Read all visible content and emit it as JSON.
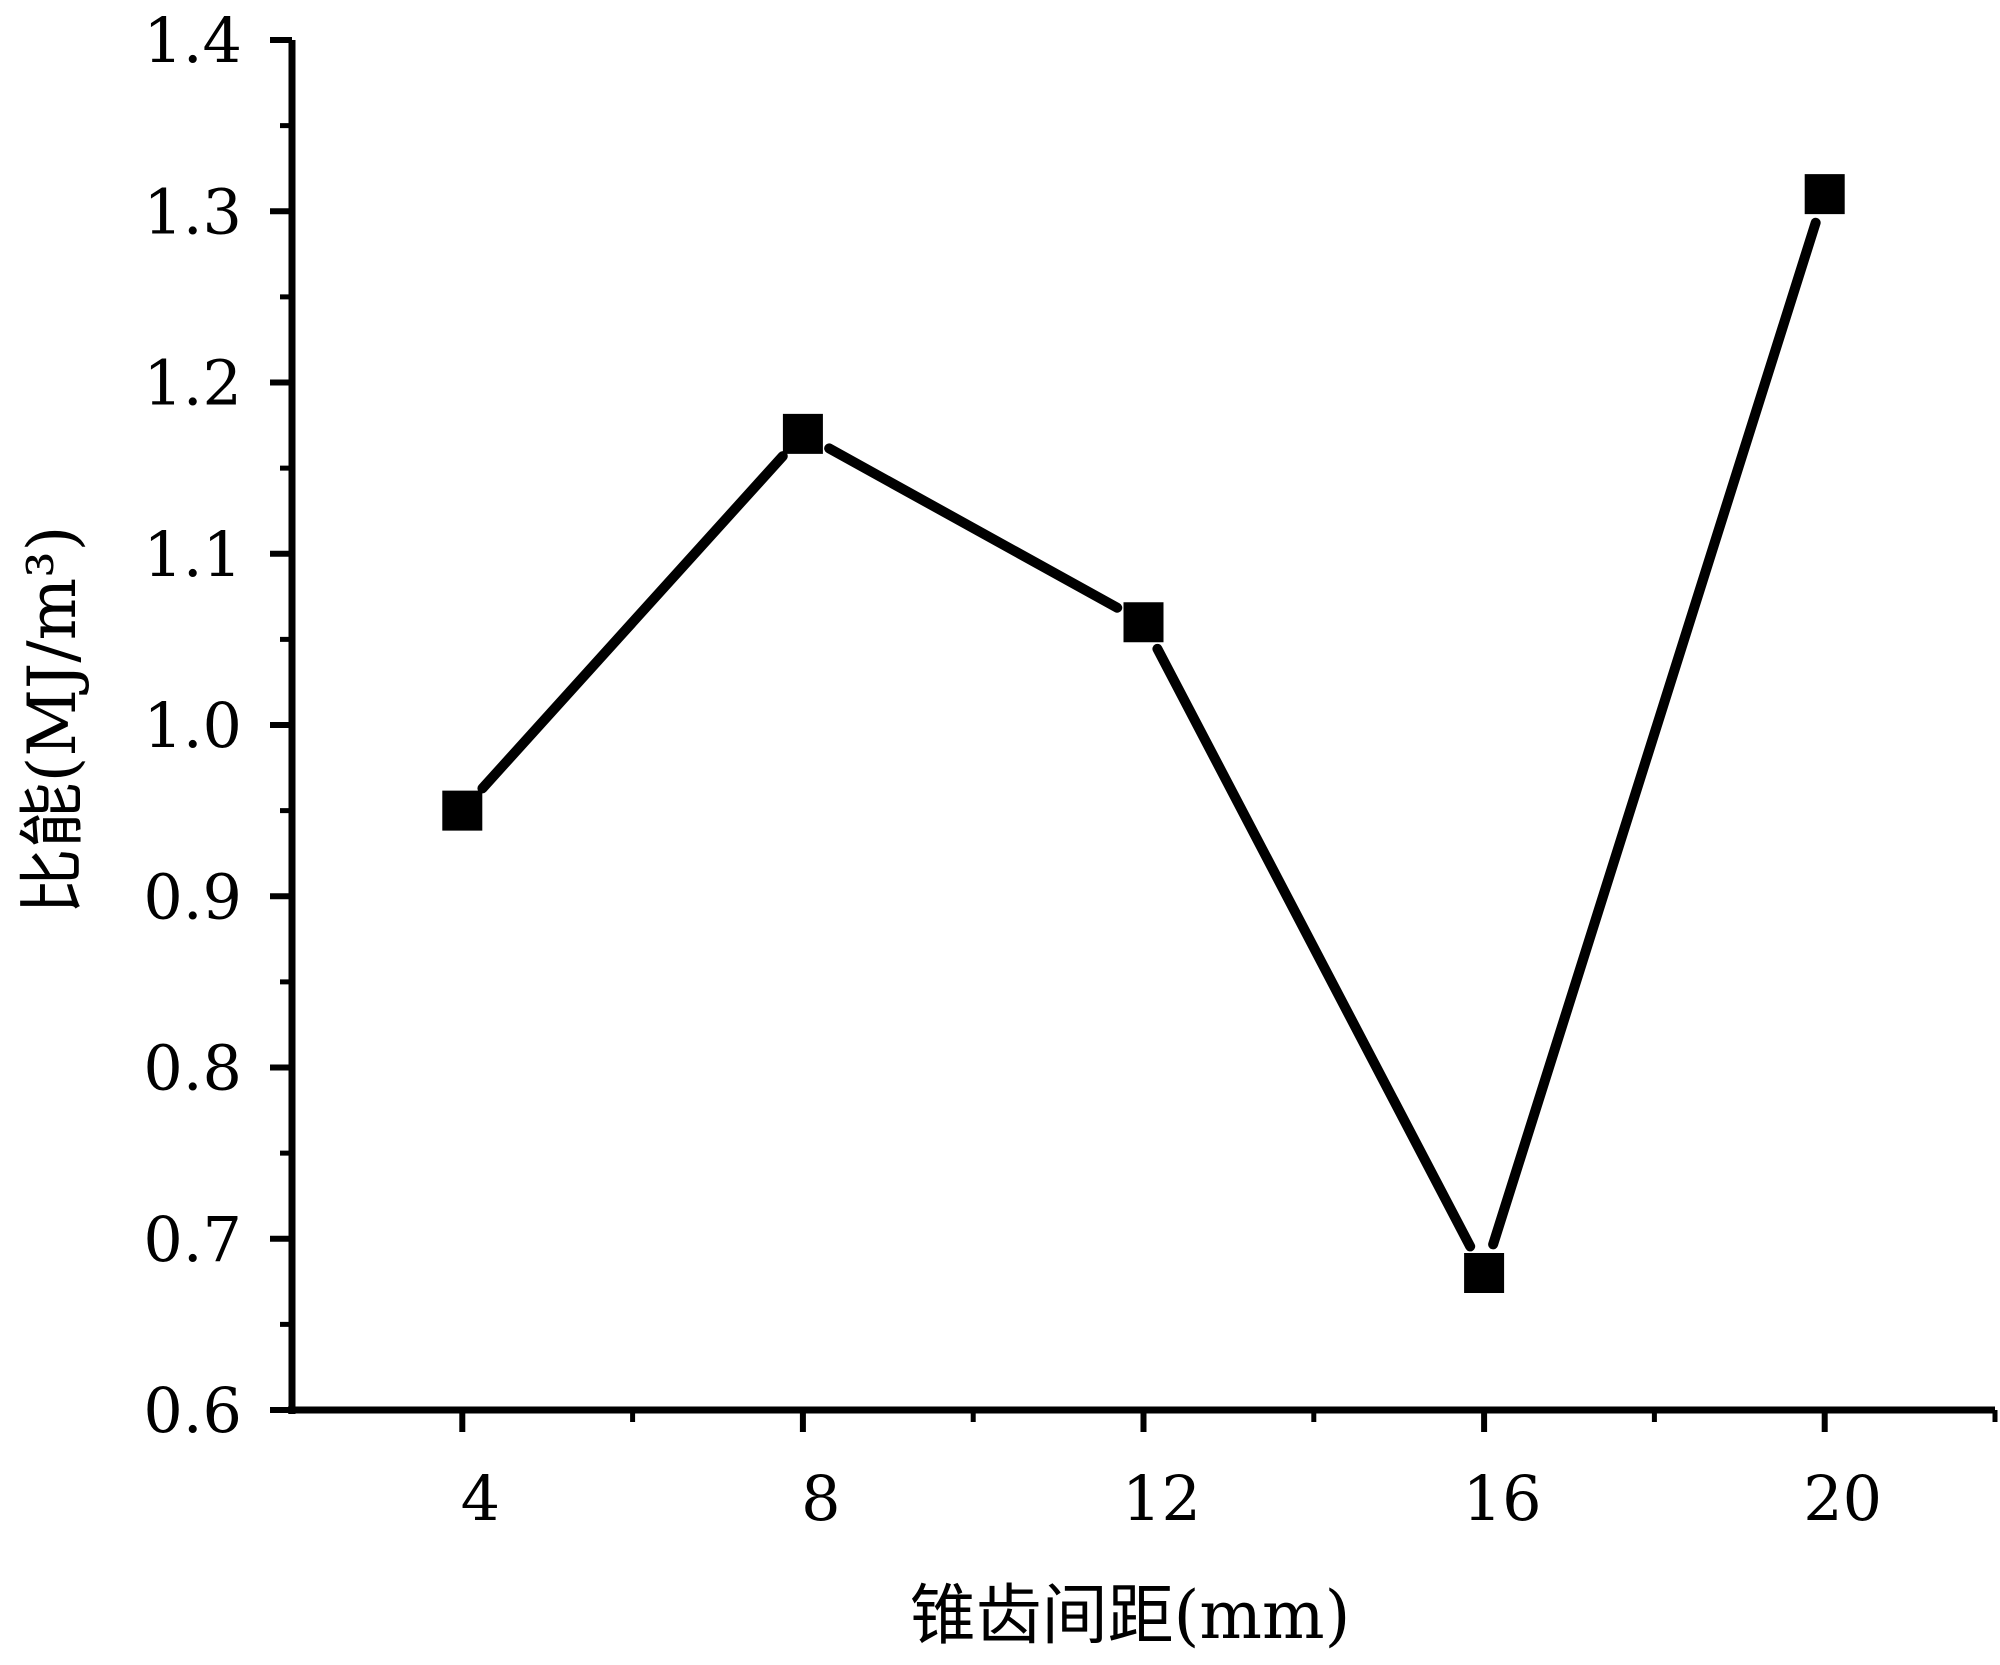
{
  "chart_data": {
    "type": "line",
    "title": "",
    "xlabel": "锥齿间距(mm)",
    "ylabel": "比能(MJ/m³)",
    "x": [
      4,
      8,
      12,
      16,
      20
    ],
    "series": [
      {
        "values": [
          0.95,
          1.17,
          1.06,
          0.68,
          1.31
        ]
      }
    ],
    "xlim": [
      2,
      22
    ],
    "ylim": [
      0.6,
      1.4
    ],
    "xticks": [
      "4",
      "8",
      "12",
      "16",
      "20"
    ],
    "yticks": [
      "0.6",
      "0.7",
      "0.8",
      "0.9",
      "1.0",
      "1.1",
      "1.2",
      "1.3",
      "1.4"
    ],
    "grid": false,
    "legend": "none",
    "line_color": "#000000",
    "marker": "square"
  }
}
